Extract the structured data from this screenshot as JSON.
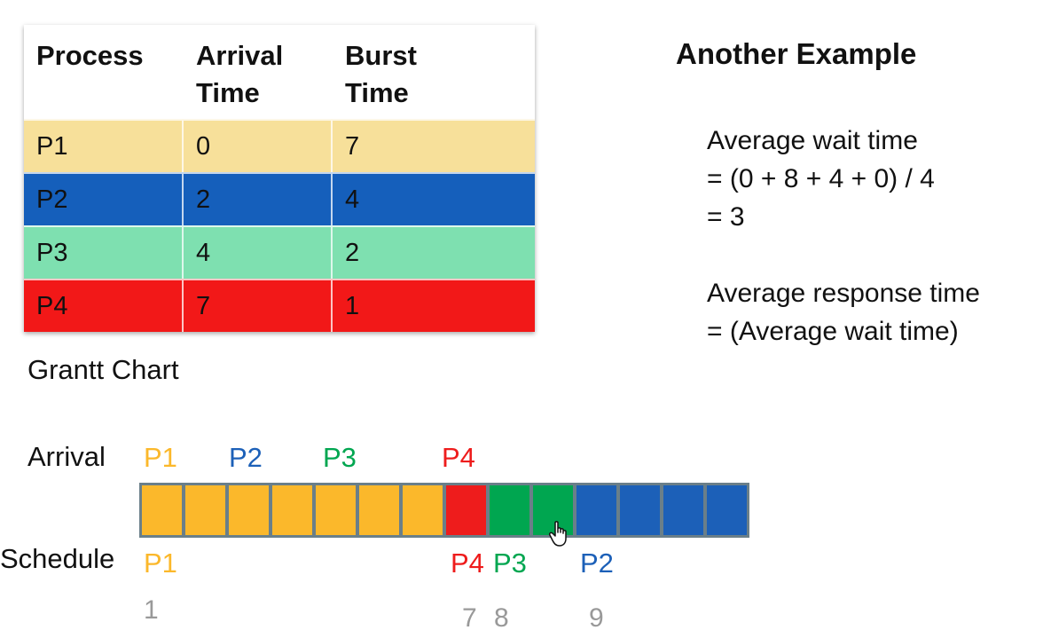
{
  "colors": {
    "P1": "#fbb82b",
    "P2": "#1c60b8",
    "P3": "#00a650",
    "P4": "#ee1c1c",
    "P1_row": "#f7e09a",
    "P2_row": "#155fbb",
    "P3_row": "#7ee0b0",
    "P4_row": "#f21818"
  },
  "table": {
    "headers": [
      "Process",
      "Arrival\nTime",
      "Burst\nTime"
    ],
    "rows": [
      {
        "process": "P1",
        "arrival": "0",
        "burst": "7"
      },
      {
        "process": "P2",
        "arrival": "2",
        "burst": "4"
      },
      {
        "process": "P3",
        "arrival": "4",
        "burst": "2"
      },
      {
        "process": "P4",
        "arrival": "7",
        "burst": "1"
      }
    ]
  },
  "title": "Another Example",
  "wait": {
    "line1": "Average wait time",
    "line2": "= (0 + 8 + 4 + 0) / 4",
    "line3": "= 3"
  },
  "response": {
    "line1": "Average response time",
    "line2": "= (Average wait time)"
  },
  "gantt": {
    "title": "Grantt Chart",
    "arrival_label": "Arrival",
    "schedule_label": "Schedule",
    "arrival_marks": [
      "P1",
      "P2",
      "P3",
      "P4"
    ],
    "schedule_marks": [
      "P1",
      "P4",
      "P3",
      "P2"
    ],
    "ticks": [
      "1",
      "7",
      "8",
      "9"
    ],
    "slots": [
      "P1",
      "P1",
      "P1",
      "P1",
      "P1",
      "P1",
      "P1",
      "P4",
      "P3",
      "P3",
      "P2",
      "P2",
      "P2",
      "P2"
    ]
  }
}
